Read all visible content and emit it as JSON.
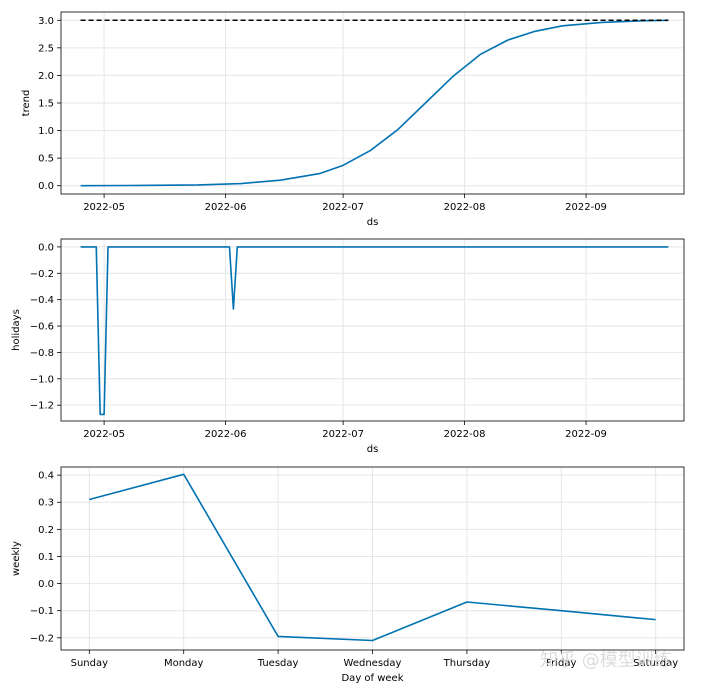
{
  "chart_data": [
    {
      "type": "line",
      "ylabel": "trend",
      "xlabel": "ds",
      "x_ticks": [
        "2022-05",
        "2022-06",
        "2022-07",
        "2022-08",
        "2022-09"
      ],
      "y_ticks": [
        "0.0",
        "0.5",
        "1.0",
        "1.5",
        "2.0",
        "2.5",
        "3.0"
      ],
      "ylim": [
        -0.15,
        3.15
      ],
      "grid": true,
      "series": [
        {
          "color": "#0072B2",
          "x": [
            "2022-04-25",
            "2022-05-10",
            "2022-05-25",
            "2022-06-05",
            "2022-06-15",
            "2022-06-25",
            "2022-07-01",
            "2022-07-08",
            "2022-07-15",
            "2022-07-22",
            "2022-07-29",
            "2022-08-05",
            "2022-08-12",
            "2022-08-19",
            "2022-08-26",
            "2022-09-05",
            "2022-09-15",
            "2022-09-22"
          ],
          "y": [
            0.0,
            0.005,
            0.015,
            0.04,
            0.1,
            0.22,
            0.37,
            0.64,
            1.02,
            1.5,
            1.98,
            2.38,
            2.64,
            2.8,
            2.9,
            2.96,
            2.99,
            3.0
          ]
        },
        {
          "color": "#000000",
          "dashed": true,
          "x": [
            "2022-04-25",
            "2022-09-22"
          ],
          "y": [
            3.0,
            3.0
          ]
        }
      ]
    },
    {
      "type": "line",
      "ylabel": "holidays",
      "xlabel": "ds",
      "x_ticks": [
        "2022-05",
        "2022-06",
        "2022-07",
        "2022-08",
        "2022-09"
      ],
      "y_ticks": [
        "0.0",
        "−0.2",
        "−0.4",
        "−0.6",
        "−0.8",
        "−1.0",
        "−1.2"
      ],
      "ylim": [
        -1.32,
        0.06
      ],
      "grid": true,
      "series": [
        {
          "color": "#0072B2",
          "x": [
            "2022-04-25",
            "2022-04-29",
            "2022-04-30",
            "2022-05-01",
            "2022-05-02",
            "2022-06-02",
            "2022-06-03",
            "2022-06-04",
            "2022-09-22"
          ],
          "y": [
            0.0,
            0.0,
            -1.27,
            -1.27,
            0.0,
            0.0,
            -0.47,
            0.0,
            0.0
          ]
        }
      ]
    },
    {
      "type": "line",
      "ylabel": "weekly",
      "xlabel": "Day of week",
      "categories": [
        "Sunday",
        "Monday",
        "Tuesday",
        "Wednesday",
        "Thursday",
        "Friday",
        "Saturday"
      ],
      "y_ticks": [
        "−0.2",
        "−0.1",
        "0.0",
        "0.1",
        "0.2",
        "0.3",
        "0.4"
      ],
      "ylim": [
        -0.245,
        0.43
      ],
      "grid": true,
      "series": [
        {
          "color": "#0072B2",
          "values": [
            0.31,
            0.403,
            -0.195,
            -0.21,
            -0.068,
            -0.1,
            -0.133
          ]
        }
      ]
    }
  ],
  "watermark": "知乎 @模型训练"
}
